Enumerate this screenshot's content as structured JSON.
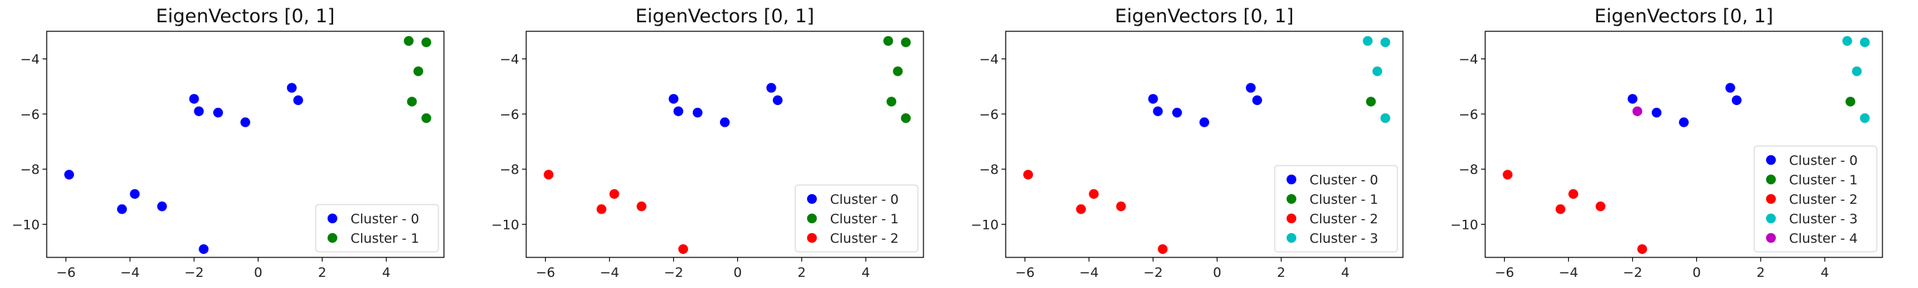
{
  "chart_data": [
    {
      "type": "scatter",
      "title": "EigenVectors [0, 1]",
      "xlim": [
        -6.6,
        5.8
      ],
      "ylim": [
        -11.2,
        -3.0
      ],
      "xticks": [
        -6,
        -4,
        -2,
        0,
        2,
        4
      ],
      "yticks": [
        -4,
        -6,
        -8,
        -10
      ],
      "xlabel": "",
      "ylabel": "",
      "legend_position": "lower-right",
      "series": [
        {
          "name": "Cluster - 0",
          "color": "#0000ff",
          "points": [
            [
              -5.9,
              -8.2
            ],
            [
              -4.25,
              -9.45
            ],
            [
              -3.85,
              -8.9
            ],
            [
              -3.0,
              -9.35
            ],
            [
              -1.7,
              -10.9
            ],
            [
              -2.0,
              -5.45
            ],
            [
              -1.85,
              -5.9
            ],
            [
              -1.25,
              -5.95
            ],
            [
              -0.4,
              -6.3
            ],
            [
              1.05,
              -5.05
            ],
            [
              1.25,
              -5.5
            ]
          ]
        },
        {
          "name": "Cluster - 1",
          "color": "#008000",
          "points": [
            [
              4.7,
              -3.35
            ],
            [
              5.25,
              -3.4
            ],
            [
              5.0,
              -4.45
            ],
            [
              4.8,
              -5.55
            ],
            [
              5.25,
              -6.15
            ]
          ]
        }
      ]
    },
    {
      "type": "scatter",
      "title": "EigenVectors [0, 1]",
      "xlim": [
        -6.6,
        5.8
      ],
      "ylim": [
        -11.2,
        -3.0
      ],
      "xticks": [
        -6,
        -4,
        -2,
        0,
        2,
        4
      ],
      "yticks": [
        -4,
        -6,
        -8,
        -10
      ],
      "xlabel": "",
      "ylabel": "",
      "legend_position": "lower-right",
      "series": [
        {
          "name": "Cluster - 0",
          "color": "#0000ff",
          "points": [
            [
              -2.0,
              -5.45
            ],
            [
              -1.85,
              -5.9
            ],
            [
              -1.25,
              -5.95
            ],
            [
              -0.4,
              -6.3
            ],
            [
              1.05,
              -5.05
            ],
            [
              1.25,
              -5.5
            ]
          ]
        },
        {
          "name": "Cluster - 1",
          "color": "#008000",
          "points": [
            [
              4.7,
              -3.35
            ],
            [
              5.25,
              -3.4
            ],
            [
              5.0,
              -4.45
            ],
            [
              4.8,
              -5.55
            ],
            [
              5.25,
              -6.15
            ]
          ]
        },
        {
          "name": "Cluster - 2",
          "color": "#ff0000",
          "points": [
            [
              -5.9,
              -8.2
            ],
            [
              -4.25,
              -9.45
            ],
            [
              -3.85,
              -8.9
            ],
            [
              -3.0,
              -9.35
            ],
            [
              -1.7,
              -10.9
            ]
          ]
        }
      ]
    },
    {
      "type": "scatter",
      "title": "EigenVectors [0, 1]",
      "xlim": [
        -6.6,
        5.8
      ],
      "ylim": [
        -11.2,
        -3.0
      ],
      "xticks": [
        -6,
        -4,
        -2,
        0,
        2,
        4
      ],
      "yticks": [
        -4,
        -6,
        -8,
        -10
      ],
      "xlabel": "",
      "ylabel": "",
      "legend_position": "lower-right",
      "series": [
        {
          "name": "Cluster - 0",
          "color": "#0000ff",
          "points": [
            [
              -2.0,
              -5.45
            ],
            [
              -1.85,
              -5.9
            ],
            [
              -1.25,
              -5.95
            ],
            [
              -0.4,
              -6.3
            ],
            [
              1.05,
              -5.05
            ],
            [
              1.25,
              -5.5
            ]
          ]
        },
        {
          "name": "Cluster - 1",
          "color": "#008000",
          "points": [
            [
              4.8,
              -5.55
            ]
          ]
        },
        {
          "name": "Cluster - 2",
          "color": "#ff0000",
          "points": [
            [
              -5.9,
              -8.2
            ],
            [
              -4.25,
              -9.45
            ],
            [
              -3.85,
              -8.9
            ],
            [
              -3.0,
              -9.35
            ],
            [
              -1.7,
              -10.9
            ]
          ]
        },
        {
          "name": "Cluster - 3",
          "color": "#00bfbf",
          "points": [
            [
              4.7,
              -3.35
            ],
            [
              5.25,
              -3.4
            ],
            [
              5.0,
              -4.45
            ],
            [
              5.25,
              -6.15
            ]
          ]
        }
      ]
    },
    {
      "type": "scatter",
      "title": "EigenVectors [0, 1]",
      "xlim": [
        -6.6,
        5.8
      ],
      "ylim": [
        -11.2,
        -3.0
      ],
      "xticks": [
        -6,
        -4,
        -2,
        0,
        2,
        4
      ],
      "yticks": [
        -4,
        -6,
        -8,
        -10
      ],
      "xlabel": "",
      "ylabel": "",
      "legend_position": "lower-right",
      "series": [
        {
          "name": "Cluster - 0",
          "color": "#0000ff",
          "points": [
            [
              -2.0,
              -5.45
            ],
            [
              -1.25,
              -5.95
            ],
            [
              -0.4,
              -6.3
            ],
            [
              1.05,
              -5.05
            ],
            [
              1.25,
              -5.5
            ]
          ]
        },
        {
          "name": "Cluster - 1",
          "color": "#008000",
          "points": [
            [
              4.8,
              -5.55
            ]
          ]
        },
        {
          "name": "Cluster - 2",
          "color": "#ff0000",
          "points": [
            [
              -5.9,
              -8.2
            ],
            [
              -4.25,
              -9.45
            ],
            [
              -3.85,
              -8.9
            ],
            [
              -3.0,
              -9.35
            ],
            [
              -1.7,
              -10.9
            ]
          ]
        },
        {
          "name": "Cluster - 3",
          "color": "#00bfbf",
          "points": [
            [
              4.7,
              -3.35
            ],
            [
              5.25,
              -3.4
            ],
            [
              5.0,
              -4.45
            ],
            [
              5.25,
              -6.15
            ]
          ]
        },
        {
          "name": "Cluster - 4",
          "color": "#bf00bf",
          "points": [
            [
              -1.85,
              -5.9
            ]
          ]
        }
      ]
    }
  ]
}
